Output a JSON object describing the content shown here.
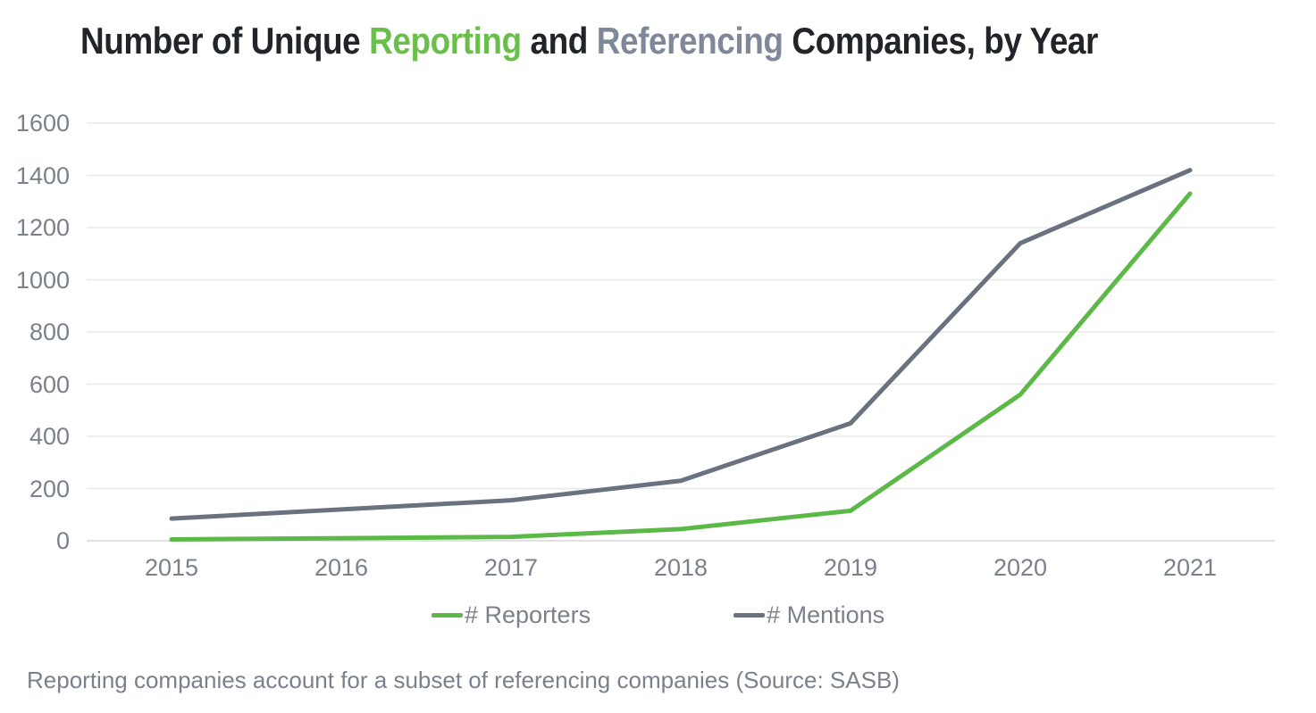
{
  "title": {
    "part1": "Number of Unique ",
    "reporting": "Reporting",
    "part2": " and ",
    "referencing": "Referencing",
    "part3": " Companies, by Year"
  },
  "colors": {
    "title_dark": "#212529",
    "title_green": "#6abf4b",
    "title_gray": "#7e8899",
    "axis_text": "#7b818c",
    "gridline": "#e8e8e8",
    "gridline_zero": "#d9d9d9",
    "background": "#ffffff"
  },
  "chart_data": {
    "type": "line",
    "title": "Number of Unique Reporting and Referencing Companies, by Year",
    "categories": [
      "2015",
      "2016",
      "2017",
      "2018",
      "2019",
      "2020",
      "2021"
    ],
    "series": [
      {
        "name": "# Reporters",
        "color": "#5cb947",
        "values": [
          5,
          10,
          15,
          45,
          115,
          560,
          1330
        ]
      },
      {
        "name": "# Mentions",
        "color": "#6a7280",
        "values": [
          85,
          120,
          155,
          230,
          450,
          1140,
          1420
        ]
      }
    ],
    "xlabel": "",
    "ylabel": "",
    "ylim": [
      0,
      1600
    ],
    "yticks": [
      0,
      200,
      400,
      600,
      800,
      1000,
      1200,
      1400,
      1600
    ],
    "grid": "horizontal",
    "legend_position": "bottom"
  },
  "legend": {
    "items": [
      {
        "label": "# Reporters",
        "color": "#5cb947"
      },
      {
        "label": "# Mentions",
        "color": "#6a7280"
      }
    ]
  },
  "footnote": "Reporting companies account for a subset of referencing companies (Source: SASB)"
}
